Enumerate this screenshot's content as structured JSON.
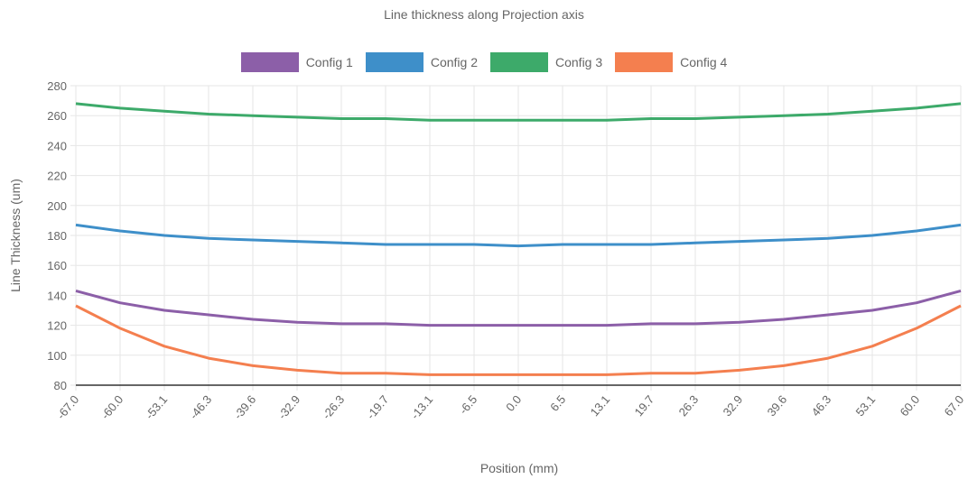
{
  "chart_data": {
    "type": "line",
    "title": "Line thickness along Projection axis",
    "xlabel": "Position (mm)",
    "ylabel": "Line Thickness (um)",
    "ylim": [
      80,
      280
    ],
    "yticks": [
      80,
      100,
      120,
      140,
      160,
      180,
      200,
      220,
      240,
      260,
      280
    ],
    "categories": [
      "-67.0",
      "-60.0",
      "-53.1",
      "-46.3",
      "-39.6",
      "-32.9",
      "-26.3",
      "-19.7",
      "-13.1",
      "-6.5",
      "0.0",
      "6.5",
      "13.1",
      "19.7",
      "26.3",
      "32.9",
      "39.6",
      "46.3",
      "53.1",
      "60.0",
      "67.0"
    ],
    "grid": true,
    "legend_position": "top",
    "series": [
      {
        "name": "Config 1",
        "color": "#8c5fa8",
        "values": [
          143,
          135,
          130,
          127,
          124,
          122,
          121,
          121,
          120,
          120,
          120,
          120,
          120,
          121,
          121,
          122,
          124,
          127,
          130,
          135,
          143
        ]
      },
      {
        "name": "Config 2",
        "color": "#3e8fc9",
        "values": [
          187,
          183,
          180,
          178,
          177,
          176,
          175,
          174,
          174,
          174,
          173,
          174,
          174,
          174,
          175,
          176,
          177,
          178,
          180,
          183,
          187
        ]
      },
      {
        "name": "Config 3",
        "color": "#3daa6a",
        "values": [
          268,
          265,
          263,
          261,
          260,
          259,
          258,
          258,
          257,
          257,
          257,
          257,
          257,
          258,
          258,
          259,
          260,
          261,
          263,
          265,
          268
        ]
      },
      {
        "name": "Config 4",
        "color": "#f47f4f",
        "values": [
          133,
          118,
          106,
          98,
          93,
          90,
          88,
          88,
          87,
          87,
          87,
          87,
          87,
          88,
          88,
          90,
          93,
          98,
          106,
          118,
          133
        ]
      }
    ]
  }
}
